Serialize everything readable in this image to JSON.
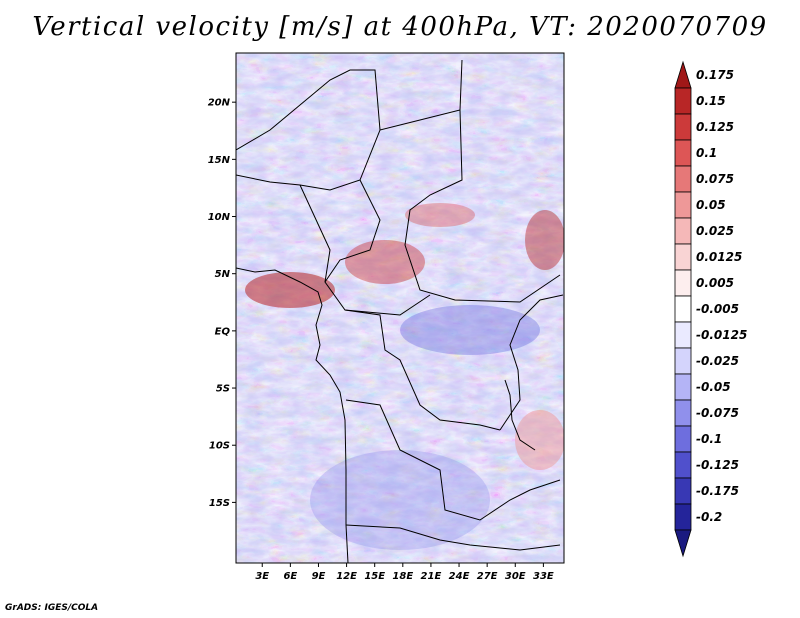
{
  "title": "Vertical velocity [m/s] at 400hPa, VT: 2020070709",
  "credit": "GrADS: IGES/COLA",
  "map": {
    "lat_labels": [
      "20N",
      "15N",
      "10N",
      "5N",
      "EQ",
      "5S",
      "10S",
      "15S"
    ],
    "lon_labels": [
      "3E",
      "6E",
      "9E",
      "12E",
      "15E",
      "18E",
      "21E",
      "24E",
      "27E",
      "30E",
      "33E"
    ],
    "lat_range": [
      -20.3,
      24.3
    ],
    "lon_range": [
      0.2,
      35.2
    ]
  },
  "colorbar": {
    "labels": [
      "0.175",
      "0.15",
      "0.125",
      "0.1",
      "0.075",
      "0.05",
      "0.025",
      "0.0125",
      "0.005",
      "-0.005",
      "-0.0125",
      "-0.025",
      "-0.05",
      "-0.075",
      "-0.1",
      "-0.125",
      "-0.175",
      "-0.2"
    ],
    "colors": [
      "#a01818",
      "#b82626",
      "#cc3a3a",
      "#dd5656",
      "#e67878",
      "#ee9898",
      "#f5b8b8",
      "#f9d4d4",
      "#fdeeee",
      "#ffffff",
      "#eaeaff",
      "#d4d4fc",
      "#b4b4f6",
      "#9090ec",
      "#6e6ede",
      "#5050cc",
      "#3838b4",
      "#24249a",
      "#1a1a80"
    ]
  }
}
